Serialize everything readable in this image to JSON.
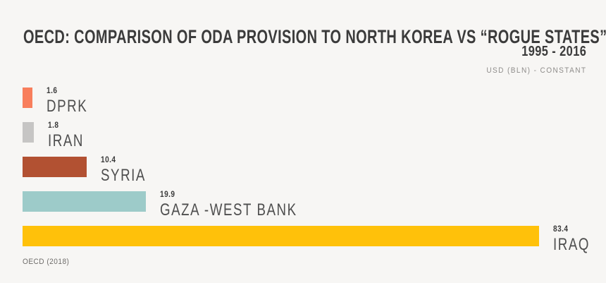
{
  "header": {
    "title": "OECD: COMPARISON OF ODA PROVISION TO NORTH KOREA VS “ROGUE STATES”",
    "subtitle": "1995 - 2016",
    "unit_label": "USD (BLN) - CONSTANT"
  },
  "chart_data": {
    "type": "bar",
    "orientation": "horizontal",
    "title": "OECD: COMPARISON OF ODA PROVISION TO NORTH KOREA VS “ROGUE STATES”",
    "subtitle": "1995 - 2016",
    "unit": "USD (BLN) - CONSTANT",
    "categories": [
      "DPRK",
      "IRAN",
      "SYRIA",
      "GAZA -WEST BANK",
      "IRAQ"
    ],
    "values": [
      1.6,
      1.8,
      10.4,
      19.9,
      83.4
    ],
    "value_labels": [
      "1.6",
      "1.8",
      "10.4",
      "19.9",
      "83.4"
    ],
    "colors": [
      "#F87E5C",
      "#C6C5C4",
      "#B25132",
      "#9DCBC9",
      "#FFC10A"
    ],
    "xlim": [
      0,
      83.4
    ],
    "grid": false,
    "legend": false,
    "source": "OECD (2018)"
  },
  "footer": {
    "source": "OECD (2018)"
  }
}
